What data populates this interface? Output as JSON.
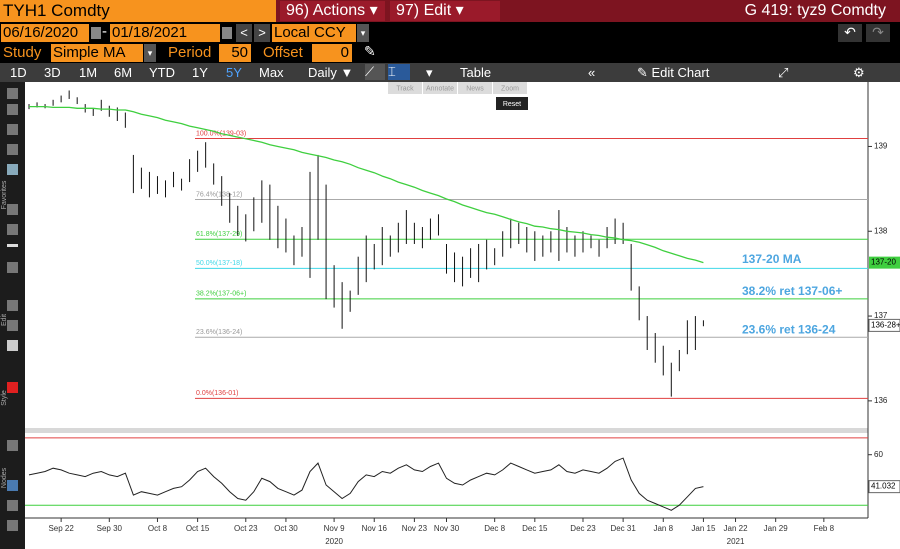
{
  "header": {
    "security": "TYH1 Comdty",
    "actions": "96) Actions",
    "edit": "97) Edit",
    "page_title": "G 419: tyz9 Comdty"
  },
  "range": {
    "start": "06/16/2020",
    "end": "01/18/2021",
    "currency": "Local CCY"
  },
  "study": {
    "label": "Study",
    "name": "Simple MA",
    "period_label": "Period",
    "period": 50,
    "offset_label": "Offset",
    "offset": 0
  },
  "toolbar": {
    "periods": [
      "1D",
      "3D",
      "1M",
      "6M",
      "YTD",
      "1Y",
      "5Y",
      "Max"
    ],
    "frequency": "Daily",
    "table": "Table",
    "edit_chart": "Edit Chart"
  },
  "chart_tools": [
    "Track",
    "Annotate",
    "News",
    "Zoom"
  ],
  "reset": "Reset",
  "side_labels": [
    "Favorites",
    "Edit",
    "Style",
    "Nodes"
  ],
  "chart_data": {
    "type": "ohlc",
    "categories": [
      null,
      null,
      null,
      null,
      "Sep 22",
      null,
      null,
      null,
      null,
      null,
      "Sep 30",
      null,
      null,
      null,
      null,
      null,
      "Oct 8",
      null,
      null,
      null,
      null,
      "Oct 15",
      null,
      null,
      null,
      null,
      null,
      "Oct 23",
      null,
      null,
      null,
      null,
      "Oct 30",
      null,
      null,
      null,
      null,
      null,
      "Nov 9",
      null,
      null,
      null,
      null,
      "Nov 16",
      null,
      null,
      null,
      null,
      "Nov 23",
      null,
      null,
      null,
      "Nov 30",
      null,
      null,
      null,
      null,
      null,
      "Dec 8",
      null,
      null,
      null,
      null,
      "Dec 15",
      null,
      null,
      null,
      null,
      null,
      "Dec 23",
      null,
      null,
      null,
      null,
      "Dec 31",
      null,
      null,
      null,
      null,
      "Jan 8",
      null,
      null,
      null,
      null,
      "Jan 15",
      null,
      null,
      null,
      "Jan 22",
      null,
      null,
      null,
      null,
      "Jan 29",
      null,
      null,
      null,
      null,
      null,
      "Feb 8",
      null,
      null,
      null,
      null,
      null
    ],
    "year_labels": [
      {
        "label": "2020",
        "at": "Nov 9"
      },
      {
        "label": "2021",
        "at": "Jan 22"
      }
    ],
    "high": [
      139.5,
      139.52,
      139.5,
      139.55,
      139.6,
      139.66,
      139.58,
      139.5,
      139.45,
      139.55,
      139.48,
      139.46,
      139.4,
      138.9,
      138.75,
      138.7,
      138.65,
      138.6,
      138.7,
      138.62,
      138.85,
      138.95,
      139.05,
      138.8,
      138.65,
      138.45,
      138.3,
      138.2,
      138.4,
      138.6,
      138.55,
      138.3,
      138.15,
      137.95,
      138.05,
      138.7,
      138.9,
      138.55,
      137.6,
      137.4,
      137.3,
      137.7,
      137.95,
      137.85,
      138.05,
      137.95,
      138.1,
      138.25,
      138.1,
      138.05,
      138.15,
      138.2,
      137.85,
      137.75,
      137.7,
      137.8,
      137.85,
      137.9,
      137.8,
      138.0,
      138.15,
      138.1,
      138.05,
      138.0,
      137.95,
      138.0,
      138.25,
      138.05,
      137.95,
      138.0,
      137.95,
      137.9,
      138.05,
      138.15,
      138.1,
      137.85,
      137.35,
      137.0,
      136.8,
      136.65,
      136.45,
      136.6,
      136.95,
      137.0,
      136.95,
      null,
      null,
      null,
      null,
      null,
      null,
      null,
      null,
      null,
      null,
      null,
      null,
      null,
      null,
      null,
      null,
      null,
      null,
      null,
      null
    ],
    "low": [
      139.44,
      139.46,
      139.45,
      139.48,
      139.52,
      139.56,
      139.5,
      139.4,
      139.36,
      139.42,
      139.35,
      139.3,
      139.22,
      138.45,
      138.5,
      138.4,
      138.44,
      138.4,
      138.52,
      138.48,
      138.58,
      138.7,
      138.75,
      138.55,
      138.3,
      138.1,
      137.95,
      137.88,
      138.0,
      138.1,
      137.9,
      137.8,
      137.75,
      137.6,
      137.7,
      137.45,
      137.9,
      137.2,
      137.1,
      136.85,
      137.05,
      137.25,
      137.4,
      137.55,
      137.6,
      137.7,
      137.75,
      137.85,
      137.85,
      137.8,
      137.9,
      137.95,
      137.5,
      137.4,
      137.35,
      137.45,
      137.4,
      137.55,
      137.6,
      137.7,
      137.8,
      137.85,
      137.75,
      137.65,
      137.7,
      137.75,
      137.65,
      137.75,
      137.7,
      137.75,
      137.8,
      137.7,
      137.8,
      137.85,
      137.85,
      137.3,
      136.95,
      136.6,
      136.45,
      136.3,
      136.05,
      136.35,
      136.55,
      136.6,
      136.88,
      null,
      null,
      null,
      null,
      null,
      null,
      null,
      null,
      null,
      null,
      null,
      null,
      null,
      null,
      null,
      null,
      null,
      null,
      null,
      null
    ],
    "color": "#111111",
    "ma": {
      "note": "137-20 MA",
      "tag": "137-20",
      "color": "#3fcf3f",
      "note_color": "#4da6e0",
      "values": [
        139.47,
        139.47,
        139.47,
        139.46,
        139.46,
        139.46,
        139.45,
        139.45,
        139.45,
        139.44,
        139.44,
        139.43,
        139.43,
        139.41,
        139.38,
        139.36,
        139.34,
        139.31,
        139.29,
        139.27,
        139.24,
        139.22,
        139.2,
        139.18,
        139.15,
        139.13,
        139.11,
        139.09,
        139.07,
        139.05,
        139.02,
        139.0,
        138.98,
        138.96,
        138.93,
        138.91,
        138.89,
        138.87,
        138.84,
        138.82,
        138.79,
        138.75,
        138.72,
        138.69,
        138.65,
        138.62,
        138.58,
        138.55,
        138.52,
        138.48,
        138.45,
        138.42,
        138.38,
        138.35,
        138.31,
        138.28,
        138.25,
        138.22,
        138.2,
        138.17,
        138.14,
        138.11,
        138.09,
        138.06,
        138.05,
        138.03,
        138.02,
        138.0,
        137.99,
        137.98,
        137.96,
        137.95,
        137.93,
        137.92,
        137.9,
        137.89,
        137.87,
        137.84,
        137.81,
        137.77,
        137.74,
        137.71,
        137.68,
        137.66,
        137.63,
        null,
        null,
        null,
        null,
        null,
        null,
        null,
        null,
        null,
        null,
        null,
        null,
        null,
        null,
        null,
        null,
        null,
        null,
        null,
        null
      ]
    },
    "ylim": [
      135.68,
      139.76
    ],
    "yticks": [
      136,
      137,
      138,
      139
    ],
    "price_tag": {
      "value": 136.89,
      "label": "136-28+"
    },
    "fib_levels": [
      {
        "label": "100.0%(139-03)",
        "value": 139.094,
        "color": "#e04040"
      },
      {
        "label": "76.4%(138-12)",
        "value": 138.375,
        "color": "#aaaaaa"
      },
      {
        "label": "61.8%(137-29)",
        "value": 137.906,
        "color": "#3fcf3f"
      },
      {
        "label": "50.0%(137-18)",
        "value": 137.5625,
        "color": "#40d8e8"
      },
      {
        "label": "38.2%(137-06+)",
        "value": 137.203,
        "color": "#3fcf3f",
        "note": "38.2% ret 137-06+"
      },
      {
        "label": "23.6%(136-24)",
        "value": 136.75,
        "color": "#aaaaaa",
        "note": "23.6% ret 136-24"
      },
      {
        "label": "0.0%(136-01)",
        "value": 136.03,
        "color": "#e04040"
      }
    ],
    "rsi": {
      "color": "#222222",
      "ylim": [
        22.4,
        72.9
      ],
      "yticks": [
        60
      ],
      "upper_band": 70,
      "lower_band": 30,
      "values": [
        48,
        49,
        50,
        52,
        51,
        49,
        48,
        47,
        49,
        50,
        48,
        47,
        49,
        36,
        38,
        37,
        36,
        38,
        40,
        41,
        45,
        50,
        52,
        47,
        43,
        38,
        34,
        33,
        38,
        46,
        44,
        40,
        38,
        36,
        39,
        50,
        55,
        42,
        38,
        34,
        37,
        44,
        48,
        47,
        50,
        49,
        52,
        54,
        51,
        50,
        53,
        55,
        46,
        43,
        42,
        45,
        47,
        49,
        48,
        51,
        55,
        53,
        51,
        49,
        50,
        51,
        54,
        50,
        49,
        51,
        50,
        49,
        52,
        56,
        58,
        45,
        37,
        33,
        31,
        29,
        27,
        30,
        35,
        40,
        41.032,
        null,
        null,
        null,
        null,
        null,
        null,
        null,
        null,
        null,
        null,
        null,
        null,
        null,
        null,
        null,
        null,
        null,
        null,
        null,
        null
      ]
    }
  }
}
